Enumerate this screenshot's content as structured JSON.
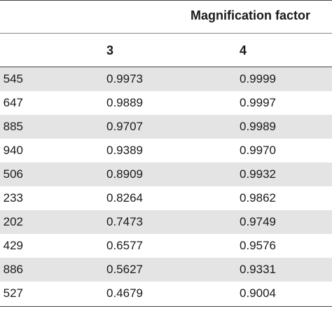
{
  "table": {
    "group_header": "Magnification factor",
    "columns": [
      "3",
      "4"
    ],
    "rows": [
      [
        "545",
        "0.9973",
        "0.9999"
      ],
      [
        "647",
        "0.9889",
        "0.9997"
      ],
      [
        "885",
        "0.9707",
        "0.9989"
      ],
      [
        "940",
        "0.9389",
        "0.9970"
      ],
      [
        "506",
        "0.8909",
        "0.9932"
      ],
      [
        "233",
        "0.8264",
        "0.9862"
      ],
      [
        "202",
        "0.7473",
        "0.9749"
      ],
      [
        "429",
        "0.6577",
        "0.9576"
      ],
      [
        "886",
        "0.5627",
        "0.9331"
      ],
      [
        "527",
        "0.4679",
        "0.9004"
      ]
    ]
  }
}
